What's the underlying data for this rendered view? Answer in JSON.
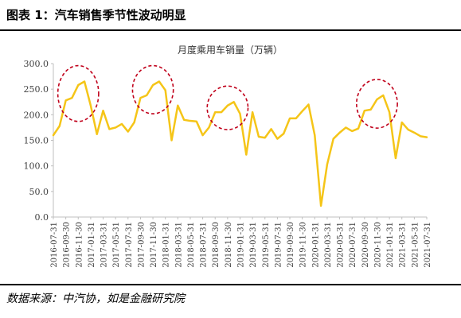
{
  "header": {
    "title": "图表 1：汽车销售季节性波动明显"
  },
  "footer": {
    "source": "数据来源：中汽协，如是金融研究院"
  },
  "colors": {
    "line": "#F5C518",
    "highlight": "#C0001A",
    "axis": "#bfbfbf"
  },
  "chart_data": {
    "type": "line",
    "title": "月度乘用车销量（万辆）",
    "xlabel": "",
    "ylabel": "",
    "ylim": [
      0,
      300
    ],
    "yticks": [
      "0.0",
      "50.0",
      "100.0",
      "150.0",
      "200.0",
      "250.0",
      "300.0"
    ],
    "grid": false,
    "x": [
      "2016-07-31",
      "2016-08-31",
      "2016-09-30",
      "2016-10-31",
      "2016-11-30",
      "2016-12-31",
      "2017-01-31",
      "2017-02-28",
      "2017-03-31",
      "2017-04-30",
      "2017-05-31",
      "2017-06-30",
      "2017-07-31",
      "2017-08-31",
      "2017-09-30",
      "2017-10-31",
      "2017-11-30",
      "2017-12-31",
      "2018-01-31",
      "2018-02-28",
      "2018-03-31",
      "2018-04-30",
      "2018-05-31",
      "2018-06-30",
      "2018-07-31",
      "2018-08-31",
      "2018-09-30",
      "2018-10-31",
      "2018-11-30",
      "2018-12-31",
      "2019-01-31",
      "2019-02-28",
      "2019-03-31",
      "2019-04-30",
      "2019-05-31",
      "2019-06-30",
      "2019-07-31",
      "2019-08-31",
      "2019-09-30",
      "2019-10-31",
      "2019-11-30",
      "2019-12-31",
      "2020-01-31",
      "2020-02-29",
      "2020-03-31",
      "2020-04-30",
      "2020-05-31",
      "2020-06-30",
      "2020-07-31",
      "2020-08-31",
      "2020-09-30",
      "2020-10-31",
      "2020-11-30",
      "2020-12-31",
      "2021-01-31",
      "2021-02-28",
      "2021-03-31",
      "2021-04-30",
      "2021-05-31",
      "2021-06-30",
      "2021-07-31"
    ],
    "x_tick_labels": [
      "2016-07-31",
      "2016-09-30",
      "2016-11-30",
      "2017-01-31",
      "2017-03-31",
      "2017-05-31",
      "2017-07-31",
      "2017-09-30",
      "2017-11-30",
      "2018-01-31",
      "2018-03-31",
      "2018-05-31",
      "2018-07-31",
      "2018-09-30",
      "2018-11-30",
      "2019-01-31",
      "2019-03-31",
      "2019-05-31",
      "2019-07-31",
      "2019-09-30",
      "2019-11-30",
      "2020-01-31",
      "2020-03-31",
      "2020-05-31",
      "2020-07-31",
      "2020-09-30",
      "2020-11-30",
      "2021-01-31",
      "2021-03-31",
      "2021-05-31",
      "2021-07-31"
    ],
    "series": [
      {
        "name": "",
        "values": [
          160,
          178,
          228,
          233,
          258,
          265,
          218,
          162,
          208,
          172,
          175,
          182,
          167,
          185,
          233,
          238,
          258,
          265,
          248,
          150,
          218,
          190,
          188,
          187,
          160,
          175,
          205,
          205,
          218,
          225,
          202,
          122,
          205,
          157,
          155,
          172,
          153,
          163,
          193,
          193,
          207,
          220,
          160,
          22,
          103,
          153,
          165,
          175,
          168,
          173,
          208,
          210,
          230,
          238,
          205,
          115,
          185,
          171,
          165,
          158,
          156
        ]
      }
    ],
    "highlight_regions": [
      {
        "label": "",
        "from": "2016-09-30",
        "to": "2017-01-31"
      },
      {
        "label": "",
        "from": "2017-09-30",
        "to": "2018-01-31"
      },
      {
        "label": "",
        "from": "2018-09-30",
        "to": "2019-01-31"
      },
      {
        "label": "",
        "from": "2020-09-30",
        "to": "2021-01-31"
      }
    ]
  }
}
